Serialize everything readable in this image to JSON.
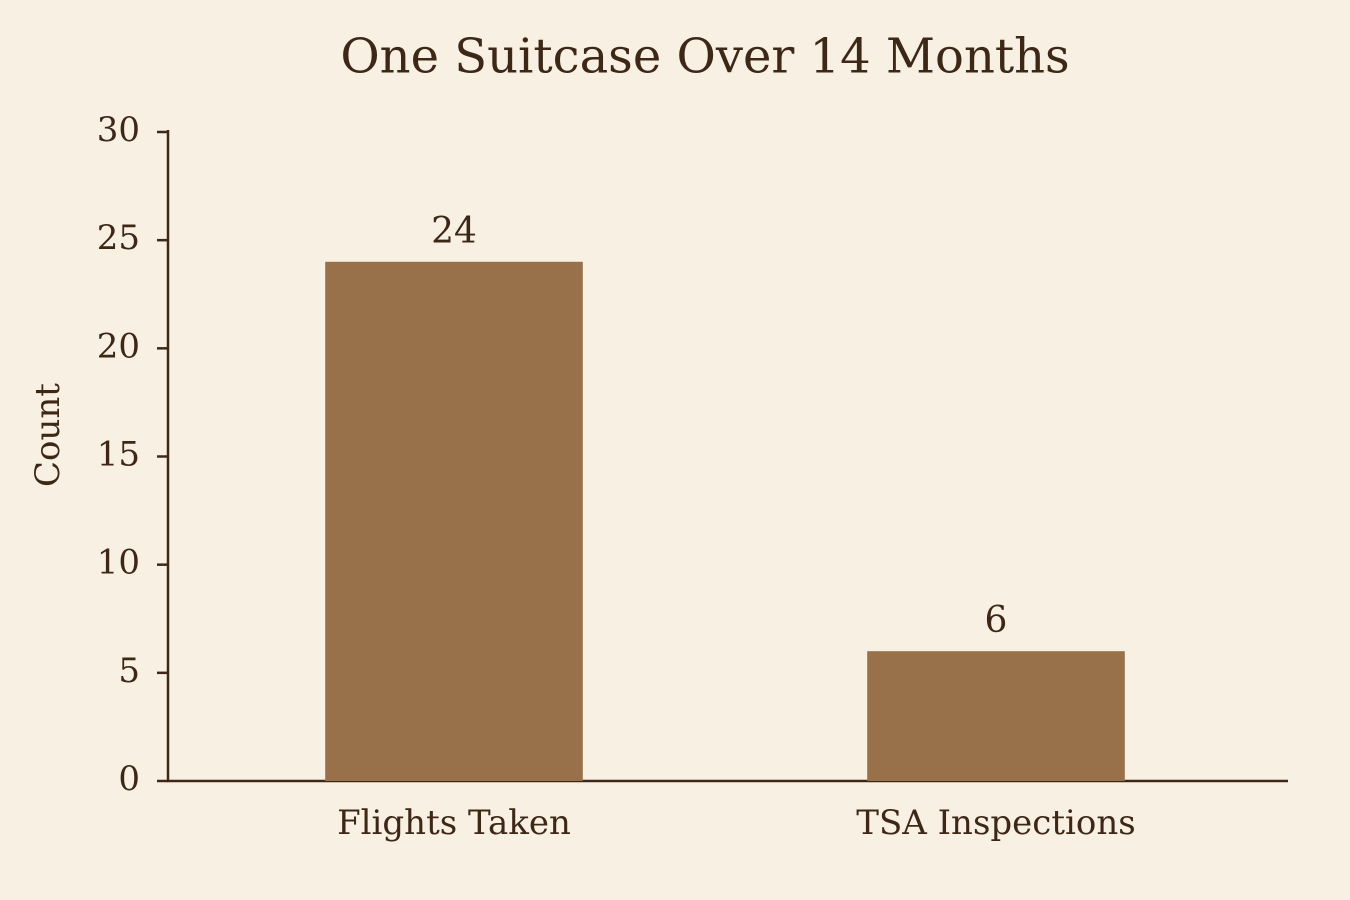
{
  "chart_data": {
    "type": "bar",
    "title": "One Suitcase Over 14 Months",
    "y_label": "Count",
    "categories": [
      "Flights Taken",
      "TSA Inspections"
    ],
    "values": [
      24,
      6
    ],
    "color": "#98714a",
    "ylim": [
      0,
      30
    ],
    "yticks": [
      0,
      5,
      10,
      15,
      20,
      25,
      30
    ],
    "grid": false
  }
}
